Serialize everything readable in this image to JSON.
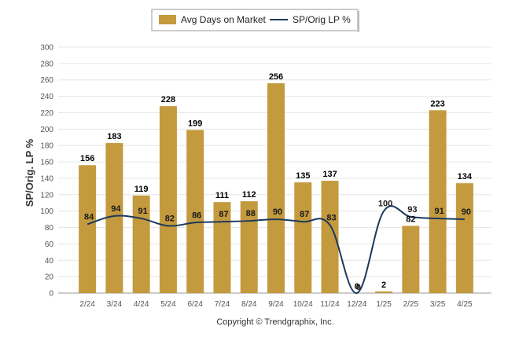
{
  "chart_data": {
    "type": "bar",
    "categories": [
      "2/24",
      "3/24",
      "4/24",
      "5/24",
      "6/24",
      "7/24",
      "8/24",
      "9/24",
      "10/24",
      "11/24",
      "12/24",
      "1/25",
      "2/25",
      "3/25",
      "4/25"
    ],
    "series": [
      {
        "name": "Avg Days on Market",
        "type": "bar",
        "values": [
          156,
          183,
          119,
          228,
          199,
          111,
          112,
          256,
          135,
          137,
          0,
          2,
          82,
          223,
          134
        ]
      },
      {
        "name": "SP/Orig LP %",
        "type": "line",
        "values": [
          84,
          94,
          91,
          82,
          86,
          87,
          88,
          90,
          87,
          83,
          0,
          100,
          93,
          91,
          90
        ]
      }
    ],
    "ylabel": "SP/Orig. LP %",
    "xlabel": "",
    "ylim": [
      0,
      300
    ],
    "yticks": [
      0,
      20,
      40,
      60,
      80,
      100,
      120,
      140,
      160,
      180,
      200,
      220,
      240,
      260,
      280,
      300
    ],
    "grid": true,
    "legend_position": "top-center",
    "colors": {
      "bar": "#C49A3E",
      "line": "#1B3A5C"
    }
  },
  "footer": "Copyright © Trendgraphix, Inc."
}
